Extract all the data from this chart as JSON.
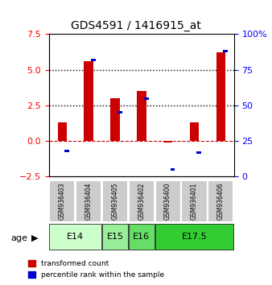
{
  "title": "GDS4591 / 1416915_at",
  "samples": [
    "GSM936403",
    "GSM936404",
    "GSM936405",
    "GSM936402",
    "GSM936400",
    "GSM936401",
    "GSM936406"
  ],
  "transformed_counts": [
    1.3,
    5.6,
    3.0,
    3.5,
    -0.1,
    1.3,
    6.2
  ],
  "percentile_ranks": [
    18,
    82,
    45,
    55,
    5,
    17,
    88
  ],
  "age_groups": [
    {
      "label": "E14",
      "start": 0,
      "end": 2,
      "color": "#ccffcc"
    },
    {
      "label": "E15",
      "start": 2,
      "end": 3,
      "color": "#99ee99"
    },
    {
      "label": "E16",
      "start": 3,
      "end": 4,
      "color": "#66dd66"
    },
    {
      "label": "E17.5",
      "start": 4,
      "end": 7,
      "color": "#33cc33"
    }
  ],
  "ylim_left": [
    -2.5,
    7.5
  ],
  "ylim_right": [
    0,
    100
  ],
  "left_ticks": [
    -2.5,
    0,
    2.5,
    5,
    7.5
  ],
  "right_ticks": [
    0,
    25,
    50,
    75,
    100
  ],
  "bar_color_red": "#cc0000",
  "bar_color_blue": "#0000cc",
  "dotted_line_y": [
    2.5,
    5.0
  ],
  "zero_line_color": "#cc0000",
  "background_color": "#ffffff",
  "sample_box_color": "#cccccc"
}
